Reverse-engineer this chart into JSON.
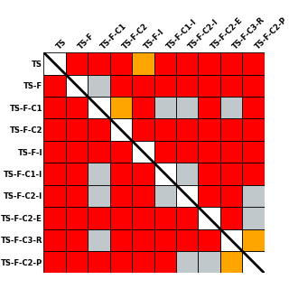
{
  "labels": [
    "TS",
    "TS-F",
    "TS-F-C1",
    "TS-F-C2",
    "TS-F-I",
    "TS-F-C1-I",
    "TS-F-C2-I",
    "TS-F-C2-E",
    "TS-F-C3-R",
    "TS-F-C2-P"
  ],
  "colors": {
    "red": "#FF0000",
    "orange": "#FFA500",
    "gray": "#C0C8CC",
    "white": "#FFFFFF"
  },
  "matrix": [
    [
      0,
      1,
      1,
      1,
      2,
      1,
      1,
      1,
      1,
      1
    ],
    [
      1,
      0,
      3,
      1,
      1,
      1,
      1,
      1,
      1,
      1
    ],
    [
      1,
      1,
      0,
      2,
      1,
      3,
      3,
      1,
      3,
      1
    ],
    [
      1,
      1,
      1,
      0,
      1,
      1,
      1,
      1,
      1,
      1
    ],
    [
      1,
      1,
      1,
      1,
      0,
      1,
      1,
      1,
      1,
      1
    ],
    [
      1,
      1,
      3,
      1,
      1,
      0,
      3,
      1,
      1,
      1
    ],
    [
      1,
      1,
      3,
      1,
      1,
      3,
      0,
      1,
      1,
      3
    ],
    [
      1,
      1,
      1,
      1,
      1,
      1,
      1,
      0,
      1,
      3
    ],
    [
      1,
      1,
      3,
      1,
      1,
      1,
      1,
      1,
      0,
      2
    ],
    [
      1,
      1,
      1,
      1,
      1,
      1,
      3,
      3,
      2,
      0
    ]
  ],
  "label_fontsize": 6.0,
  "figsize": [
    3.2,
    3.2
  ],
  "dpi": 100
}
